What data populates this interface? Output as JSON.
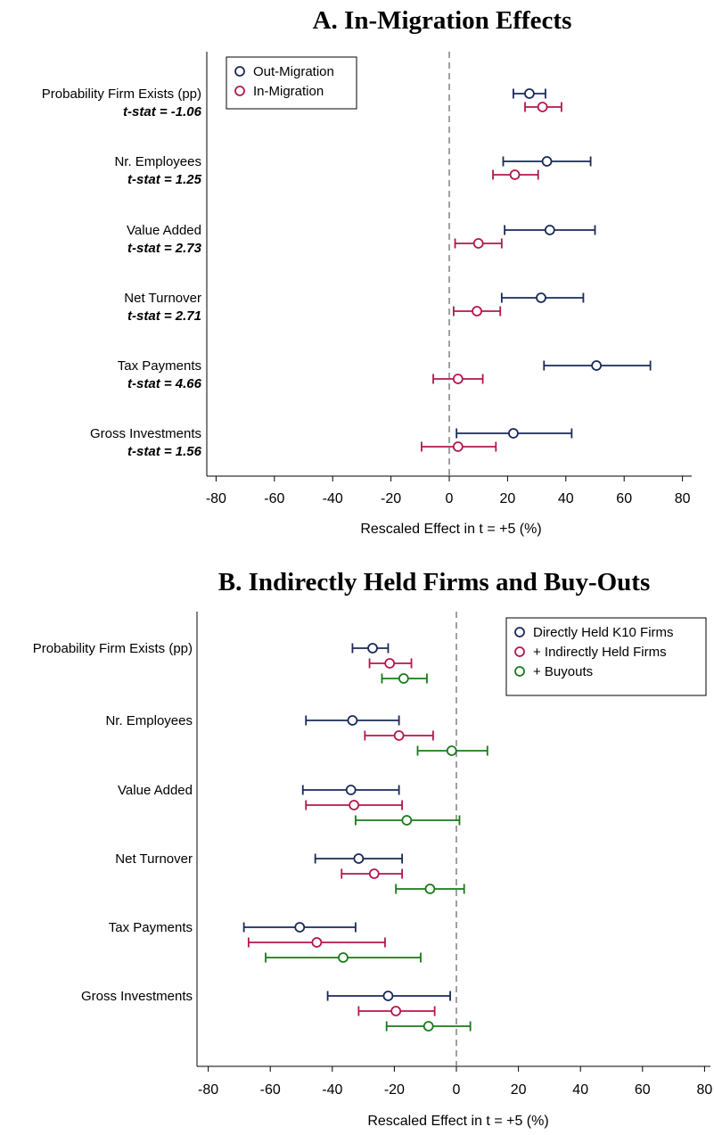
{
  "chart_data": [
    {
      "type": "scatter",
      "title": "A. In-Migration Effects",
      "xlabel": "Rescaled Effect in t = +5 (%)",
      "xlim": [
        -83,
        83
      ],
      "xticks": [
        "-80",
        "-60",
        "-40",
        "-20",
        "0",
        "20",
        "40",
        "60",
        "80"
      ],
      "xtick_values": [
        -80,
        -60,
        -40,
        -20,
        0,
        20,
        40,
        60,
        80
      ],
      "reference_line": 0,
      "legend_position": "top-left",
      "categories": [
        "Probability Firm Exists (pp)",
        "Nr. Employees",
        "Value Added",
        "Net Turnover",
        "Tax Payments",
        "Gross Investments"
      ],
      "annotations": [
        "t-stat = -1.06",
        "t-stat =  1.25",
        "t-stat =  2.73",
        "t-stat =  2.71",
        "t-stat =  4.66",
        "t-stat =  1.56"
      ],
      "series": [
        {
          "name": "Out-Migration",
          "color": "#1a2a5a",
          "estimates": [
            27.5,
            33.5,
            34.5,
            31.5,
            50.5,
            22
          ],
          "ci_low": [
            22,
            18.5,
            19,
            18,
            32.5,
            2.5
          ],
          "ci_high": [
            33,
            48.5,
            50,
            46,
            69,
            42
          ]
        },
        {
          "name": "In-Migration",
          "color": "#b5174a",
          "estimates": [
            32,
            22.5,
            10,
            9.5,
            3,
            3
          ],
          "ci_low": [
            26,
            15,
            2,
            1.5,
            -5.5,
            -9.5
          ],
          "ci_high": [
            38.5,
            30.5,
            18,
            17.5,
            11.5,
            16
          ]
        }
      ]
    },
    {
      "type": "scatter",
      "title": "B. Indirectly Held Firms and Buy-Outs",
      "xlabel": "Rescaled Effect in t = +5 (%)",
      "xlim": [
        -83,
        83
      ],
      "xticks": [
        "-80",
        "-60",
        "-40",
        "-20",
        "0",
        "20",
        "40",
        "60",
        "80"
      ],
      "xtick_values": [
        -80,
        -60,
        -40,
        -20,
        0,
        20,
        40,
        60,
        80
      ],
      "reference_line": 0,
      "legend_position": "top-right",
      "categories": [
        "Probability Firm Exists (pp)",
        "Nr. Employees",
        "Value Added",
        "Net Turnover",
        "Tax Payments",
        "Gross Investments"
      ],
      "series": [
        {
          "name": "Directly Held K10 Firms",
          "color": "#1a2a5a",
          "estimates": [
            -27,
            -33.5,
            -34,
            -31.5,
            -50.5,
            -22
          ],
          "ci_low": [
            -33.5,
            -48.5,
            -49.5,
            -45.5,
            -68.5,
            -41.5
          ],
          "ci_high": [
            -22,
            -18.5,
            -18.5,
            -17.5,
            -32.5,
            -2
          ]
        },
        {
          "name": "+ Indirectly Held Firms",
          "color": "#b5174a",
          "estimates": [
            -21.5,
            -18.5,
            -33,
            -26.5,
            -45,
            -19.5
          ],
          "ci_low": [
            -28,
            -29.5,
            -48.5,
            -37,
            -67,
            -31.5
          ],
          "ci_high": [
            -14.5,
            -7.5,
            -17.5,
            -17.5,
            -23,
            -7
          ]
        },
        {
          "name": "+ Buyouts",
          "color": "#1a7a1a",
          "estimates": [
            -17,
            -1.5,
            -16,
            -8.5,
            -36.5,
            -9
          ],
          "ci_low": [
            -24,
            -12.5,
            -32.5,
            -19.5,
            -61.5,
            -22.5
          ],
          "ci_high": [
            -9.5,
            10,
            1,
            2.5,
            -11.5,
            4.5
          ]
        }
      ]
    }
  ]
}
